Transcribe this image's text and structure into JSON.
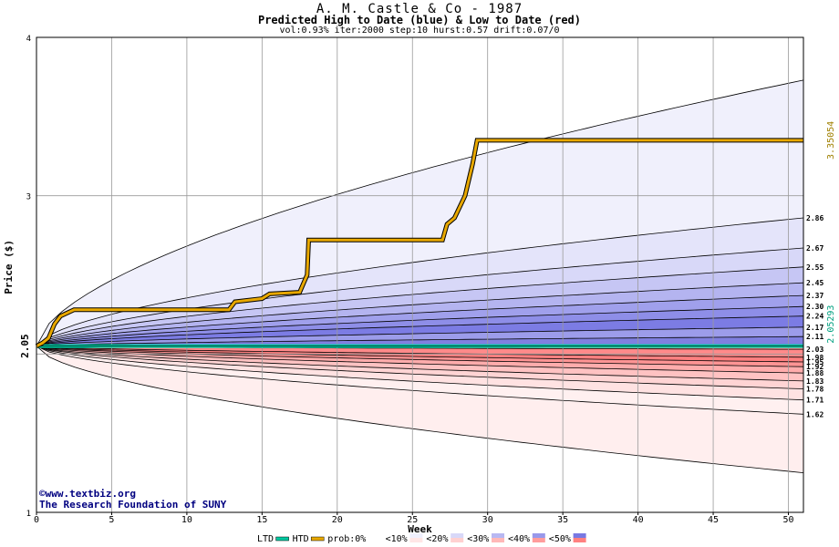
{
  "header": {
    "title": "A. M. Castle & Co - 1987",
    "subtitle": "Predicted High to Date (blue) &  Low to Date (red)",
    "params": "vol:0.93% iter:2000 step:10 hurst:0.57 drift:0.07/0"
  },
  "credits": {
    "site": "©www.textbiz.org",
    "org": "The Research Foundation of SUNY"
  },
  "chart_data": {
    "type": "area",
    "xlabel": "Week",
    "ylabel": "Price ($)",
    "xlim": [
      0,
      51
    ],
    "ylim": [
      1,
      4
    ],
    "x_ticks": [
      0,
      5,
      10,
      15,
      20,
      25,
      30,
      35,
      40,
      45,
      50
    ],
    "y_ticks": [
      1,
      3,
      4
    ],
    "y_tick_labels": [
      "1",
      "3",
      "4"
    ],
    "start_price": 2.05,
    "start_price_label": "2.05",
    "right_side_values": {
      "upper": "3.35054",
      "lower": "2.05293"
    },
    "grid": true,
    "upper_band_end_labels": [
      "2.86",
      "2.67",
      "2.55",
      "2.45",
      "2.37",
      "2.30",
      "2.24",
      "2.17",
      "2.11"
    ],
    "lower_band_end_labels": [
      "2.03",
      "1.98",
      "1.95",
      "1.92",
      "1.88",
      "1.83",
      "1.78",
      "1.71",
      "1.62"
    ],
    "upper_envelope_end": 3.73,
    "lower_envelope_end": 1.25,
    "htd_series": [
      [
        0,
        2.05
      ],
      [
        0.4,
        2.07
      ],
      [
        0.8,
        2.1
      ],
      [
        1.2,
        2.19
      ],
      [
        1.6,
        2.24
      ],
      [
        2.5,
        2.28
      ],
      [
        12.8,
        2.28
      ],
      [
        13.2,
        2.33
      ],
      [
        15,
        2.35
      ],
      [
        15.5,
        2.38
      ],
      [
        17.5,
        2.39
      ],
      [
        18,
        2.5
      ],
      [
        18.1,
        2.72
      ],
      [
        27,
        2.72
      ],
      [
        27.3,
        2.82
      ],
      [
        27.8,
        2.86
      ],
      [
        28.5,
        3.0
      ],
      [
        29,
        3.2
      ],
      [
        29.3,
        3.35
      ],
      [
        51,
        3.35
      ]
    ],
    "ltd_series": [
      [
        0,
        2.05
      ],
      [
        51,
        2.05
      ]
    ],
    "legend": [
      {
        "label": "LTD",
        "color": "#00c8a0"
      },
      {
        "label": "HTD",
        "color": "#e8a800"
      },
      {
        "label": "prob:0%",
        "color": "#ffffff"
      },
      {
        "label": "<10%",
        "color": "#efeffc"
      },
      {
        "label": "<20%",
        "color": "#d8d8f8"
      },
      {
        "label": "<30%",
        "color": "#b8b8f2"
      },
      {
        "label": "<40%",
        "color": "#9898ea"
      },
      {
        "label": "<50%",
        "color": "#7878e2"
      }
    ],
    "legend_lower_colors": [
      "#ffe6e6",
      "#ffd0d0",
      "#ffb8b8",
      "#ff9c9c",
      "#ff8080"
    ],
    "legend_upper_colors": [
      "#efeffc",
      "#d8d8f8",
      "#b8b8f2",
      "#9898ea",
      "#7878e2"
    ]
  }
}
